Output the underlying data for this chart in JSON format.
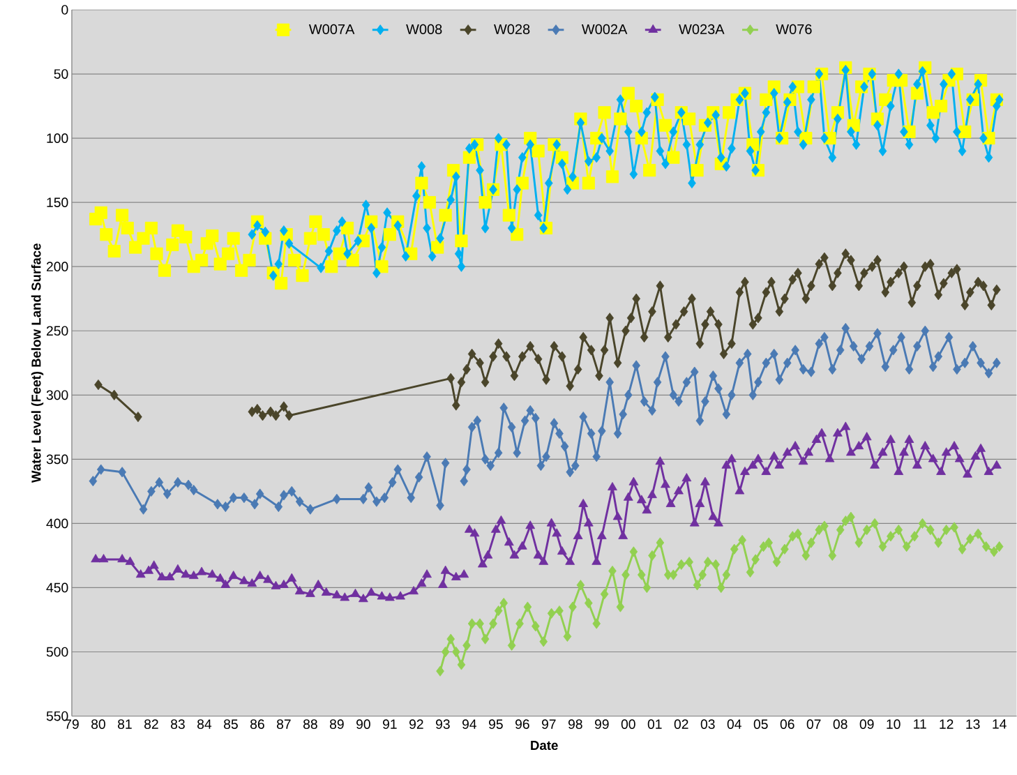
{
  "chart_data": {
    "type": "line",
    "xlabel": "Date",
    "ylabel": "Water Level (Feet) Below Land Surface",
    "xlim": [
      1979,
      2014.65
    ],
    "ylim": [
      550,
      0
    ],
    "xticks": [
      {
        "value": 1979,
        "label": "79"
      },
      {
        "value": 1980,
        "label": "80"
      },
      {
        "value": 1981,
        "label": "81"
      },
      {
        "value": 1982,
        "label": "82"
      },
      {
        "value": 1983,
        "label": "83"
      },
      {
        "value": 1984,
        "label": "84"
      },
      {
        "value": 1985,
        "label": "85"
      },
      {
        "value": 1986,
        "label": "86"
      },
      {
        "value": 1987,
        "label": "87"
      },
      {
        "value": 1988,
        "label": "88"
      },
      {
        "value": 1989,
        "label": "89"
      },
      {
        "value": 1990,
        "label": "90"
      },
      {
        "value": 1991,
        "label": "91"
      },
      {
        "value": 1992,
        "label": "92"
      },
      {
        "value": 1993,
        "label": "93"
      },
      {
        "value": 1994,
        "label": "94"
      },
      {
        "value": 1995,
        "label": "95"
      },
      {
        "value": 1996,
        "label": "96"
      },
      {
        "value": 1997,
        "label": "97"
      },
      {
        "value": 1998,
        "label": "98"
      },
      {
        "value": 1999,
        "label": "99"
      },
      {
        "value": 2000,
        "label": "00"
      },
      {
        "value": 2001,
        "label": "01"
      },
      {
        "value": 2002,
        "label": "02"
      },
      {
        "value": 2003,
        "label": "03"
      },
      {
        "value": 2004,
        "label": "04"
      },
      {
        "value": 2005,
        "label": "05"
      },
      {
        "value": 2006,
        "label": "06"
      },
      {
        "value": 2007,
        "label": "07"
      },
      {
        "value": 2008,
        "label": "08"
      },
      {
        "value": 2009,
        "label": "09"
      },
      {
        "value": 2010,
        "label": "10"
      },
      {
        "value": 2011,
        "label": "11"
      },
      {
        "value": 2012,
        "label": "12"
      },
      {
        "value": 2013,
        "label": "13"
      },
      {
        "value": 2014,
        "label": "14"
      }
    ],
    "yticks": [
      0,
      50,
      100,
      150,
      200,
      250,
      300,
      350,
      400,
      450,
      500,
      550
    ],
    "grid": "y",
    "legend": "top",
    "series": [
      {
        "name": "W007A",
        "color": "#ffff00",
        "marker": "square",
        "x": [
          1979.9,
          1980.1,
          1980.3,
          1980.6,
          1980.9,
          1981.1,
          1981.4,
          1981.7,
          1982.0,
          1982.2,
          1982.5,
          1982.8,
          1983.0,
          1983.3,
          1983.6,
          1983.9,
          1984.1,
          1984.3,
          1984.6,
          1984.9,
          1985.1,
          1985.4,
          1985.7,
          1986.0,
          1986.3,
          1986.6,
          1986.9,
          1987.1,
          1987.4,
          1987.7,
          1988.0,
          1988.2,
          1988.5,
          1988.8,
          1989.1,
          1989.4,
          1989.6,
          1990.0,
          1990.3,
          1990.7,
          1991.0,
          1991.3,
          1991.8,
          1992.2,
          1992.5,
          1992.8,
          1993.1,
          1993.4,
          1993.7,
          1994.0,
          1994.3,
          1994.6,
          1994.9,
          1995.2,
          1995.5,
          1995.8,
          1996.0,
          1996.3,
          1996.6,
          1996.9,
          1997.2,
          1997.5,
          1997.9,
          1998.2,
          1998.5,
          1998.8,
          1999.1,
          1999.4,
          1999.7,
          2000.0,
          2000.3,
          2000.5,
          2000.8,
          2001.1,
          2001.4,
          2001.7,
          2002.0,
          2002.3,
          2002.6,
          2002.9,
          2003.2,
          2003.5,
          2003.8,
          2004.1,
          2004.4,
          2004.7,
          2004.9,
          2005.2,
          2005.5,
          2005.8,
          2006.1,
          2006.4,
          2006.7,
          2007.0,
          2007.3,
          2007.6,
          2007.9,
          2008.2,
          2008.5,
          2008.8,
          2009.1,
          2009.4,
          2009.7,
          2010.0,
          2010.3,
          2010.6,
          2010.9,
          2011.2,
          2011.5,
          2011.8,
          2012.1,
          2012.4,
          2012.7,
          2013.0,
          2013.3,
          2013.6,
          2013.9
        ],
        "values": [
          163,
          158,
          175,
          188,
          160,
          170,
          185,
          178,
          170,
          190,
          203,
          183,
          172,
          177,
          200,
          195,
          182,
          176,
          198,
          190,
          178,
          203,
          195,
          165,
          178,
          205,
          213,
          175,
          195,
          207,
          178,
          165,
          175,
          200,
          190,
          170,
          195,
          180,
          165,
          200,
          175,
          165,
          190,
          135,
          150,
          185,
          160,
          125,
          180,
          115,
          105,
          150,
          140,
          105,
          160,
          175,
          135,
          100,
          110,
          170,
          105,
          115,
          135,
          85,
          135,
          100,
          80,
          130,
          85,
          65,
          75,
          100,
          125,
          70,
          90,
          115,
          80,
          85,
          125,
          90,
          80,
          120,
          80,
          70,
          65,
          105,
          125,
          70,
          60,
          100,
          70,
          60,
          100,
          60,
          50,
          100,
          80,
          45,
          90,
          60,
          50,
          85,
          70,
          55,
          55,
          95,
          65,
          45,
          80,
          75,
          55,
          50,
          95,
          70,
          55,
          100,
          70
        ]
      },
      {
        "name": "W008",
        "color": "#00b0f0",
        "marker": "diamond",
        "x": [
          1985.8,
          1986.0,
          1986.3,
          1986.6,
          1986.8,
          1987.0,
          1987.2,
          1988.4,
          1988.7,
          1989.0,
          1989.2,
          1989.4,
          1989.8,
          1990.1,
          1990.3,
          1990.5,
          1990.7,
          1990.9,
          1991.3,
          1991.6,
          1992.0,
          1992.2,
          1992.4,
          1992.6,
          1992.9,
          1993.3,
          1993.5,
          1993.6,
          1993.7,
          1994.0,
          1994.2,
          1994.4,
          1994.6,
          1994.9,
          1995.1,
          1995.4,
          1995.6,
          1995.8,
          1996.0,
          1996.3,
          1996.6,
          1996.8,
          1997.0,
          1997.3,
          1997.5,
          1997.7,
          1997.9,
          1998.2,
          1998.5,
          1998.8,
          1999.0,
          1999.3,
          1999.7,
          2000.0,
          2000.2,
          2000.5,
          2000.7,
          2001.0,
          2001.2,
          2001.4,
          2001.7,
          2002.0,
          2002.2,
          2002.4,
          2002.7,
          2003.0,
          2003.3,
          2003.5,
          2003.7,
          2003.9,
          2004.2,
          2004.4,
          2004.6,
          2004.8,
          2005.0,
          2005.2,
          2005.5,
          2005.7,
          2006.0,
          2006.2,
          2006.4,
          2006.6,
          2006.9,
          2007.2,
          2007.4,
          2007.7,
          2007.9,
          2008.2,
          2008.4,
          2008.6,
          2008.9,
          2009.2,
          2009.4,
          2009.6,
          2009.9,
          2010.2,
          2010.4,
          2010.6,
          2010.9,
          2011.1,
          2011.4,
          2011.6,
          2011.9,
          2012.2,
          2012.4,
          2012.6,
          2012.9,
          2013.2,
          2013.4,
          2013.6,
          2013.9,
          2014.0
        ],
        "values": [
          175,
          168,
          173,
          207,
          198,
          172,
          182,
          201,
          188,
          172,
          165,
          190,
          180,
          152,
          170,
          205,
          185,
          158,
          168,
          192,
          145,
          122,
          170,
          192,
          178,
          148,
          130,
          190,
          200,
          108,
          105,
          125,
          170,
          140,
          100,
          105,
          170,
          140,
          115,
          105,
          160,
          170,
          135,
          105,
          120,
          140,
          130,
          88,
          118,
          115,
          100,
          110,
          70,
          95,
          128,
          95,
          80,
          68,
          110,
          120,
          95,
          80,
          105,
          135,
          105,
          88,
          82,
          115,
          122,
          108,
          70,
          65,
          110,
          125,
          95,
          80,
          65,
          100,
          72,
          60,
          95,
          105,
          70,
          50,
          100,
          115,
          85,
          47,
          95,
          105,
          60,
          50,
          90,
          110,
          75,
          50,
          95,
          105,
          58,
          48,
          90,
          100,
          58,
          50,
          95,
          110,
          70,
          58,
          100,
          115,
          75,
          70
        ]
      },
      {
        "name": "W028",
        "color": "#4a452a",
        "marker": "diamond",
        "x": [
          1980.0,
          1980.6,
          1981.5,
          1983.5,
          1985.8,
          1986.0,
          1986.2,
          1986.5,
          1986.7,
          1987.0,
          1987.2,
          1993.3,
          1993.5,
          1993.7,
          1993.9,
          1994.1,
          1994.4,
          1994.6,
          1994.9,
          1995.1,
          1995.4,
          1995.7,
          1996.0,
          1996.3,
          1996.6,
          1996.9,
          1997.2,
          1997.5,
          1997.8,
          1998.1,
          1998.3,
          1998.6,
          1998.9,
          1999.1,
          1999.3,
          1999.6,
          1999.9,
          2000.1,
          2000.3,
          2000.6,
          2000.9,
          2001.2,
          2001.5,
          2001.8,
          2002.1,
          2002.4,
          2002.7,
          2002.9,
          2003.1,
          2003.4,
          2003.6,
          2003.9,
          2004.2,
          2004.4,
          2004.7,
          2004.9,
          2005.2,
          2005.4,
          2005.7,
          2005.9,
          2006.2,
          2006.4,
          2006.7,
          2006.9,
          2007.2,
          2007.4,
          2007.7,
          2007.9,
          2008.2,
          2008.4,
          2008.7,
          2008.9,
          2009.2,
          2009.4,
          2009.7,
          2009.9,
          2010.2,
          2010.4,
          2010.7,
          2010.9,
          2011.2,
          2011.4,
          2011.7,
          2011.9,
          2012.2,
          2012.4,
          2012.7,
          2012.9,
          2013.2,
          2013.4,
          2013.7,
          2013.9
        ],
        "values": [
          292,
          300,
          317,
          null,
          313,
          311,
          316,
          313,
          316,
          309,
          316,
          287,
          308,
          290,
          280,
          268,
          275,
          290,
          270,
          260,
          270,
          285,
          270,
          262,
          272,
          288,
          262,
          270,
          293,
          280,
          255,
          265,
          285,
          265,
          240,
          275,
          250,
          240,
          225,
          255,
          235,
          215,
          255,
          245,
          235,
          225,
          260,
          245,
          235,
          245,
          268,
          260,
          220,
          212,
          245,
          240,
          220,
          212,
          235,
          225,
          210,
          205,
          225,
          215,
          198,
          193,
          215,
          205,
          190,
          195,
          215,
          205,
          200,
          195,
          220,
          212,
          205,
          200,
          228,
          215,
          200,
          198,
          222,
          213,
          205,
          202,
          230,
          220,
          212,
          215,
          230,
          218
        ]
      },
      {
        "name": "W002A",
        "color": "#4a7ab4",
        "marker": "diamond",
        "x": [
          1979.8,
          1980.1,
          1980.9,
          1981.7,
          1982.0,
          1982.3,
          1982.6,
          1983.0,
          1983.4,
          1983.6,
          1984.5,
          1984.8,
          1985.1,
          1985.5,
          1985.9,
          1986.1,
          1986.8,
          1987.0,
          1987.3,
          1987.6,
          1988.0,
          1989.0,
          1990.0,
          1990.2,
          1990.5,
          1990.8,
          1991.1,
          1991.3,
          1991.8,
          1992.1,
          1992.4,
          1992.9,
          1993.1,
          1993.5,
          1993.8,
          1993.9,
          1994.1,
          1994.3,
          1994.6,
          1994.8,
          1995.1,
          1995.3,
          1995.6,
          1995.8,
          1996.1,
          1996.3,
          1996.5,
          1996.7,
          1996.9,
          1997.2,
          1997.4,
          1997.6,
          1997.8,
          1998.0,
          1998.3,
          1998.6,
          1998.8,
          1999.0,
          1999.3,
          1999.6,
          1999.8,
          2000.0,
          2000.3,
          2000.6,
          2000.9,
          2001.1,
          2001.4,
          2001.7,
          2001.9,
          2002.2,
          2002.5,
          2002.7,
          2002.9,
          2003.2,
          2003.4,
          2003.7,
          2003.9,
          2004.2,
          2004.5,
          2004.7,
          2004.9,
          2005.2,
          2005.5,
          2005.7,
          2006.0,
          2006.3,
          2006.6,
          2006.9,
          2007.2,
          2007.4,
          2007.7,
          2008.0,
          2008.2,
          2008.5,
          2008.8,
          2009.1,
          2009.4,
          2009.7,
          2010.0,
          2010.3,
          2010.6,
          2010.9,
          2011.2,
          2011.5,
          2011.7,
          2012.1,
          2012.4,
          2012.7,
          2013.0,
          2013.3,
          2013.6,
          2013.9
        ],
        "values": [
          367,
          358,
          360,
          389,
          375,
          368,
          377,
          368,
          370,
          374,
          385,
          387,
          380,
          380,
          385,
          377,
          387,
          378,
          375,
          383,
          389,
          381,
          381,
          372,
          383,
          380,
          368,
          358,
          380,
          364,
          348,
          386,
          353,
          null,
          367,
          358,
          325,
          320,
          350,
          355,
          345,
          310,
          325,
          345,
          320,
          312,
          318,
          355,
          348,
          322,
          330,
          340,
          360,
          355,
          317,
          330,
          348,
          328,
          290,
          330,
          315,
          300,
          277,
          305,
          312,
          290,
          270,
          300,
          305,
          290,
          282,
          320,
          305,
          285,
          295,
          315,
          300,
          275,
          268,
          300,
          290,
          275,
          268,
          288,
          275,
          265,
          280,
          282,
          260,
          255,
          280,
          265,
          248,
          262,
          272,
          262,
          252,
          278,
          265,
          255,
          280,
          262,
          250,
          278,
          270,
          255,
          280,
          275,
          262,
          275,
          283,
          275
        ]
      },
      {
        "name": "W023A",
        "color": "#7030a0",
        "marker": "triangle",
        "x": [
          1979.9,
          1980.2,
          1980.9,
          1981.2,
          1981.6,
          1981.9,
          1982.1,
          1982.4,
          1982.7,
          1983.0,
          1983.3,
          1983.6,
          1983.9,
          1984.3,
          1984.6,
          1984.8,
          1985.1,
          1985.5,
          1985.8,
          1986.1,
          1986.4,
          1986.7,
          1987.0,
          1987.3,
          1987.6,
          1988.0,
          1988.3,
          1988.6,
          1989.0,
          1989.3,
          1989.7,
          1990.0,
          1990.3,
          1990.7,
          1991.0,
          1991.4,
          1991.9,
          1992.2,
          1992.4,
          1992.7,
          1993.0,
          1993.1,
          1993.5,
          1993.8,
          1993.9,
          1994.0,
          1994.2,
          1994.5,
          1994.7,
          1995.0,
          1995.2,
          1995.5,
          1995.7,
          1996.0,
          1996.3,
          1996.6,
          1996.8,
          1997.1,
          1997.3,
          1997.5,
          1997.8,
          1998.1,
          1998.3,
          1998.5,
          1998.8,
          1999.0,
          1999.4,
          1999.6,
          1999.8,
          2000.0,
          2000.2,
          2000.5,
          2000.7,
          2000.9,
          2001.2,
          2001.4,
          2001.6,
          2001.9,
          2002.2,
          2002.5,
          2002.7,
          2002.9,
          2003.2,
          2003.4,
          2003.7,
          2003.9,
          2004.2,
          2004.4,
          2004.7,
          2004.9,
          2005.2,
          2005.5,
          2005.7,
          2006.0,
          2006.3,
          2006.6,
          2006.8,
          2007.1,
          2007.3,
          2007.6,
          2007.9,
          2008.2,
          2008.4,
          2008.7,
          2009.0,
          2009.3,
          2009.6,
          2009.9,
          2010.2,
          2010.4,
          2010.6,
          2010.9,
          2011.2,
          2011.5,
          2011.8,
          2012.0,
          2012.3,
          2012.5,
          2012.8,
          2013.1,
          2013.3,
          2013.6,
          2013.9
        ],
        "values": [
          428,
          428,
          428,
          430,
          440,
          437,
          433,
          442,
          442,
          436,
          440,
          441,
          438,
          440,
          443,
          448,
          441,
          445,
          447,
          441,
          444,
          449,
          448,
          443,
          453,
          455,
          448,
          454,
          456,
          458,
          455,
          459,
          454,
          457,
          458,
          457,
          453,
          447,
          440,
          null,
          448,
          437,
          442,
          440,
          null,
          405,
          408,
          432,
          425,
          405,
          398,
          415,
          425,
          418,
          402,
          425,
          430,
          400,
          408,
          422,
          430,
          410,
          385,
          400,
          430,
          410,
          372,
          395,
          410,
          380,
          368,
          382,
          390,
          378,
          352,
          370,
          385,
          375,
          365,
          400,
          385,
          368,
          395,
          400,
          355,
          350,
          375,
          360,
          355,
          350,
          360,
          348,
          355,
          345,
          340,
          352,
          345,
          335,
          330,
          350,
          330,
          325,
          345,
          340,
          333,
          355,
          345,
          335,
          360,
          345,
          335,
          355,
          340,
          350,
          360,
          345,
          340,
          350,
          362,
          348,
          342,
          360,
          355
        ]
      },
      {
        "name": "W076",
        "color": "#92d050",
        "marker": "diamond",
        "x": [
          1992.9,
          1993.1,
          1993.3,
          1993.5,
          1993.7,
          1993.9,
          1994.1,
          1994.4,
          1994.6,
          1994.9,
          1995.1,
          1995.3,
          1995.6,
          1995.9,
          1996.2,
          1996.5,
          1996.8,
          1997.1,
          1997.4,
          1997.7,
          1997.9,
          1998.2,
          1998.5,
          1998.8,
          1999.1,
          1999.4,
          1999.7,
          1999.9,
          2000.2,
          2000.5,
          2000.7,
          2000.9,
          2001.2,
          2001.5,
          2001.7,
          2002.0,
          2002.3,
          2002.6,
          2002.8,
          2003.0,
          2003.3,
          2003.5,
          2003.7,
          2004.0,
          2004.3,
          2004.6,
          2004.8,
          2005.1,
          2005.3,
          2005.6,
          2005.9,
          2006.2,
          2006.4,
          2006.7,
          2006.9,
          2007.2,
          2007.4,
          2007.7,
          2008.0,
          2008.2,
          2008.4,
          2008.7,
          2009.0,
          2009.3,
          2009.6,
          2009.9,
          2010.2,
          2010.5,
          2010.8,
          2011.1,
          2011.4,
          2011.7,
          2012.0,
          2012.3,
          2012.6,
          2012.9,
          2013.2,
          2013.5,
          2013.8,
          2014.0
        ],
        "values": [
          515,
          500,
          490,
          500,
          510,
          495,
          478,
          478,
          490,
          478,
          468,
          462,
          495,
          478,
          465,
          480,
          492,
          470,
          468,
          488,
          465,
          448,
          462,
          478,
          455,
          437,
          465,
          440,
          422,
          440,
          450,
          425,
          415,
          440,
          440,
          432,
          430,
          448,
          440,
          430,
          432,
          450,
          440,
          420,
          413,
          438,
          428,
          418,
          415,
          430,
          420,
          410,
          408,
          425,
          415,
          405,
          402,
          425,
          405,
          398,
          395,
          415,
          405,
          400,
          418,
          410,
          405,
          418,
          410,
          400,
          405,
          415,
          405,
          403,
          420,
          412,
          408,
          418,
          422,
          418
        ]
      }
    ]
  }
}
